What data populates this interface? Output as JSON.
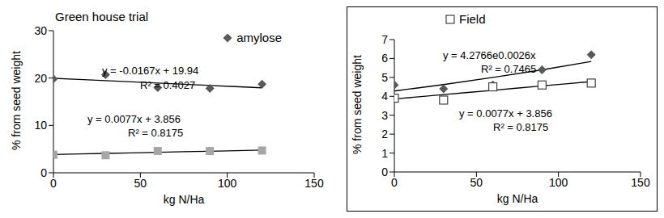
{
  "chart_data": [
    {
      "type": "scatter",
      "title": "Green house trial",
      "x_label": "kg N/Ha",
      "y_label": "% from seed weight",
      "x": [
        0,
        30,
        60,
        90,
        120
      ],
      "xlim": [
        0,
        150
      ],
      "xticks": [
        0,
        50,
        100,
        150
      ],
      "ylim": [
        0,
        30
      ],
      "yticks": [
        0,
        10,
        20,
        30
      ],
      "grid": false,
      "legend": "top-right",
      "series": [
        {
          "name": "amylose",
          "type": "scatter",
          "marker": "diamond",
          "color": "#595959",
          "values": [
            19.8,
            20.7,
            18.0,
            17.8,
            18.7
          ]
        },
        {
          "type": "scatter",
          "marker": "square",
          "color": "#a6a6a6",
          "values": [
            3.8,
            3.7,
            4.6,
            4.6,
            4.7
          ]
        },
        {
          "type": "line",
          "line_style": "solid",
          "color": "#000000",
          "values": [
            19.94,
            19.44,
            18.94,
            18.44,
            17.94
          ]
        },
        {
          "type": "line",
          "line_style": "solid",
          "color": "#000000",
          "values": [
            3.86,
            4.09,
            4.32,
            4.55,
            4.78
          ]
        }
      ],
      "annotations": [
        "y = -0.0167x + 19.94",
        "R² = 0.4027",
        "y = 0.0077x + 3.856",
        "R² = 0.8175"
      ]
    },
    {
      "type": "scatter",
      "x_label": "kg N/Ha",
      "y_label": "% from seed weight",
      "x": [
        0,
        30,
        60,
        90,
        120
      ],
      "xlim": [
        0,
        150
      ],
      "xticks": [
        0,
        50,
        100,
        150
      ],
      "ylim": [
        0,
        7
      ],
      "yticks": [
        0,
        1,
        2,
        3,
        4,
        5,
        6,
        7
      ],
      "grid": false,
      "legend": "top-left",
      "series": [
        {
          "type": "scatter",
          "marker": "diamond",
          "color": "#595959",
          "values": [
            4.6,
            4.4,
            4.6,
            5.4,
            6.2
          ]
        },
        {
          "name": "Field",
          "type": "scatter",
          "marker": "open-square",
          "color": "#404040",
          "values": [
            3.9,
            3.8,
            4.5,
            4.6,
            4.7
          ]
        },
        {
          "type": "line",
          "line_style": "solid",
          "color": "#000000",
          "values": [
            4.28,
            4.62,
            5.0,
            5.4,
            5.84
          ]
        },
        {
          "type": "line",
          "line_style": "solid",
          "color": "#000000",
          "values": [
            3.86,
            4.09,
            4.32,
            4.55,
            4.78
          ]
        }
      ],
      "annotations": [
        "y = 4.2766e0.0026x",
        "R² = 0.7465",
        "y = 0.0077x + 3.856",
        "R² = 0.8175"
      ]
    }
  ]
}
